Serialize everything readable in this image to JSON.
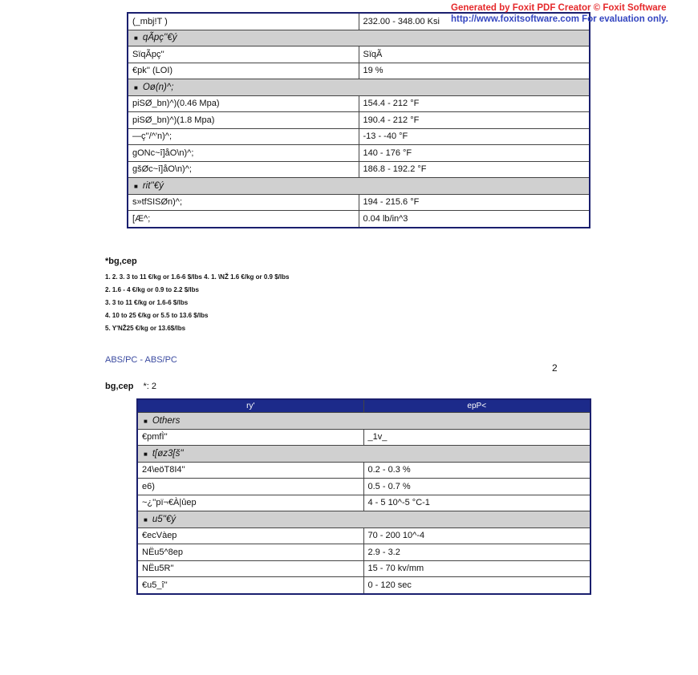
{
  "watermark": {
    "line1": "Generated by Foxit PDF Creator © Foxit Software",
    "line2": "http://www.foxitsoftware.com   For evaluation only."
  },
  "table1": {
    "rows": [
      {
        "type": "row",
        "label": "(_mbj!T   )",
        "value": "232.00 - 348.00 Ksi"
      },
      {
        "type": "section",
        "label": "qÃpç''€ý"
      },
      {
        "type": "row",
        "label": "SïqÃpç''",
        "value": "SïqÃ"
      },
      {
        "type": "row",
        "label": "€pk''   (LOI)",
        "value": "19 %"
      },
      {
        "type": "section",
        "label": "Oø(n)^;"
      },
      {
        "type": "row",
        "label": "piSØ_bn)^)(0.46 Mpa)",
        "value": "154.4 - 212 °F"
      },
      {
        "type": "row",
        "label": "piSØ_bn)^)(1.8 Mpa)",
        "value": "190.4 - 212 °F"
      },
      {
        "type": "row",
        "label": "—ç''/^'n)^;",
        "value": "-13 - -40 °F"
      },
      {
        "type": "row",
        "label": "gONc~î]åO\\n)^;",
        "value": "140 - 176 °F"
      },
      {
        "type": "row",
        "label": "gšØc~î]åO\\n)^;",
        "value": "186.8 - 192.2 °F"
      },
      {
        "type": "section",
        "label": "rit''€ý"
      },
      {
        "type": "row",
        "label": "s»tfSISØn)^;",
        "value": "194 - 215.6 °F"
      },
      {
        "type": "row",
        "label": "[Æ^;",
        "value": "0.04 lb/in^3"
      }
    ]
  },
  "notes": {
    "heading": "*bg,cep",
    "items": [
      "1. 2. 3. 3 to 11 €/kg or 1.6-6 $/lbs 4. 1.  \\NŽ  1.6 €/kg or 0.9 $/lbs",
      "2.  1.6 - 4 €/kg or 0.9 to 2.2 $/lbs",
      "3.  3 to 11 €/kg or 1.6-6 $/lbs",
      "4.  10 to 25 €/kg or 5.5 to 13.6 $/lbs",
      "5.  Y'NŽ25 €/kg or 13.6$/lbs"
    ]
  },
  "link": "ABS/PC - ABS/PC",
  "page_number": "2",
  "caption": {
    "bold": "bg,cep",
    "rest": "*: 2"
  },
  "table2": {
    "headers": [
      "ry'",
      "epP<"
    ],
    "rows": [
      {
        "type": "section",
        "label": "Others"
      },
      {
        "type": "row",
        "label": "€pmfÌ''",
        "value": "_1v_"
      },
      {
        "type": "section",
        "label": "t[øz3[š''"
      },
      {
        "type": "row",
        "label": "24\\eöT8I4''",
        "value": "0.2 - 0.3 %"
      },
      {
        "type": "row",
        "label": "e6)",
        "value": "0.5 - 0.7 %"
      },
      {
        "type": "row",
        "label": "~¿''pï¬€À|ûep",
        "value": "4 - 5 10^-5 °C-1"
      },
      {
        "type": "section",
        "label": "u5''€ý"
      },
      {
        "type": "row",
        "label": "€ecVàep",
        "value": "70 - 200 10^-4"
      },
      {
        "type": "row",
        "label": "NËu5^8ep",
        "value": "2.9 - 3.2"
      },
      {
        "type": "row",
        "label": "NËu5R''",
        "value": "15 - 70 kv/mm"
      },
      {
        "type": "row",
        "label": "€u5_î''",
        "value": "0 - 120 sec"
      }
    ]
  }
}
